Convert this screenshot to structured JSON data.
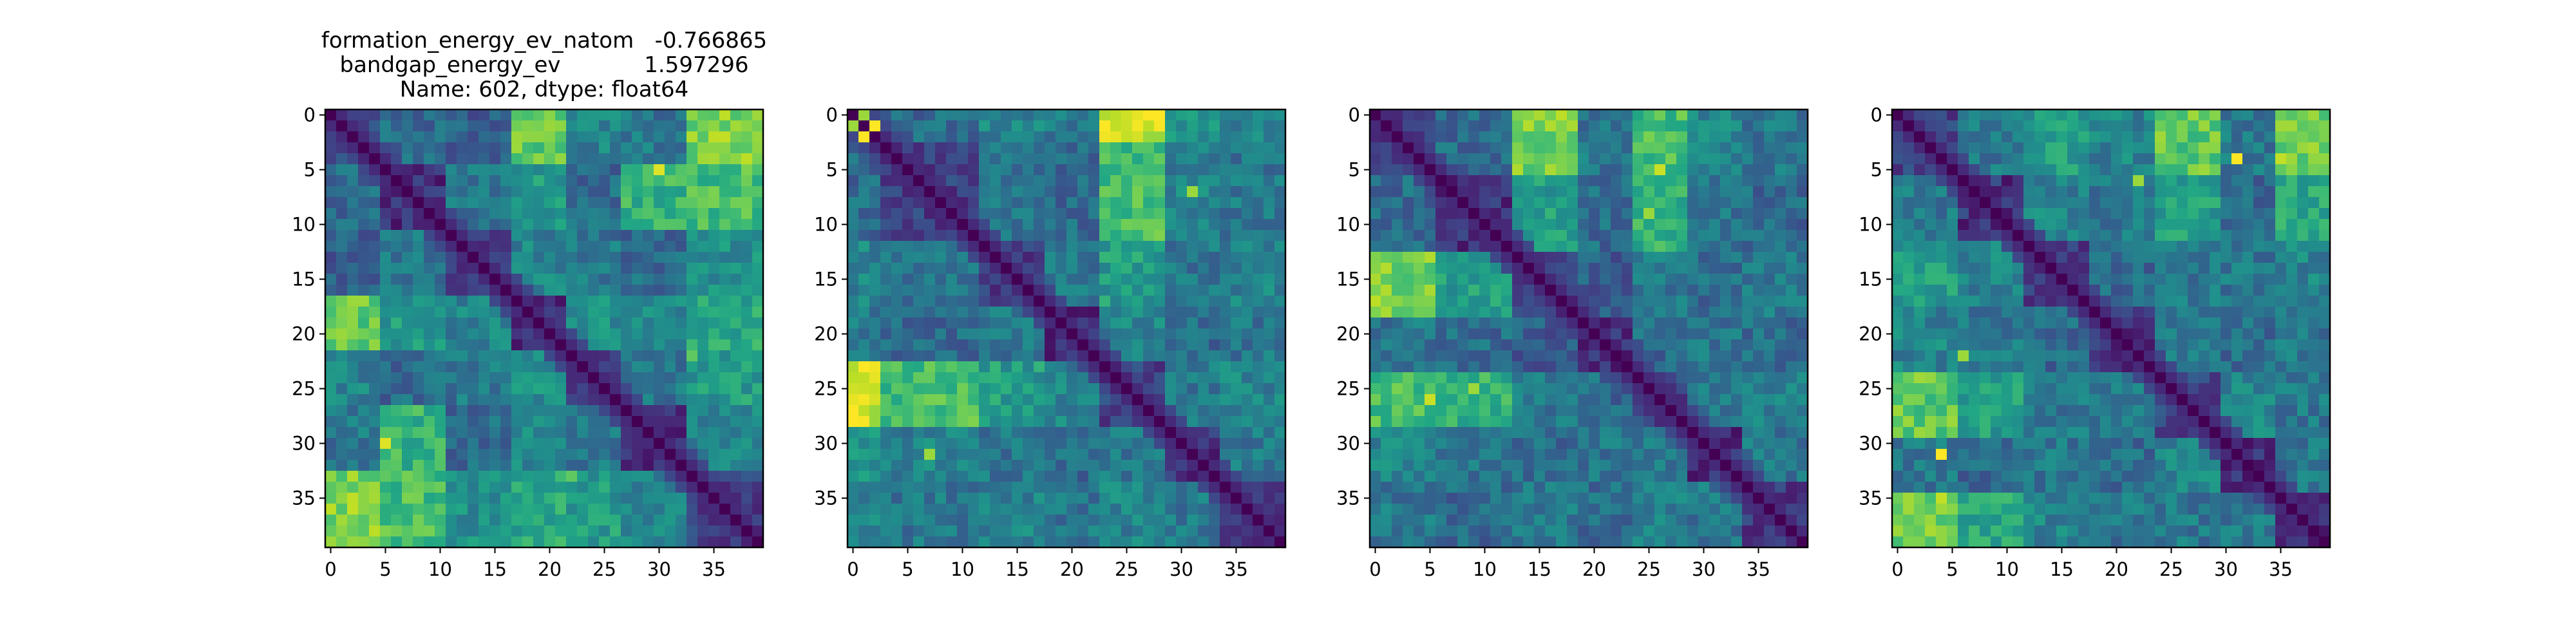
{
  "chart_data": [
    {
      "type": "heatmap",
      "title_lines": [
        "formation_energy_ev_natom   -0.766865",
        "bandgap_energy_ev            1.597296",
        "Name: 602, dtype: float64"
      ],
      "size": 40,
      "colormap": "viridis",
      "xticks": [
        0,
        5,
        10,
        15,
        20,
        25,
        30,
        35
      ],
      "yticks": [
        0,
        5,
        10,
        15,
        20,
        25,
        30,
        35
      ],
      "blocks": [
        0,
        5,
        11,
        17,
        22,
        27,
        33,
        40
      ],
      "block_levels": [
        [
          0.2,
          0.35,
          0.3,
          0.75,
          0.45,
          0.4,
          0.8,
          0.35
        ],
        [
          0.35,
          0.15,
          0.4,
          0.55,
          0.35,
          0.65,
          0.7,
          0.4
        ],
        [
          0.3,
          0.4,
          0.2,
          0.45,
          0.4,
          0.35,
          0.5,
          0.35
        ],
        [
          0.75,
          0.55,
          0.45,
          0.15,
          0.5,
          0.45,
          0.6,
          0.7
        ],
        [
          0.45,
          0.35,
          0.4,
          0.5,
          0.2,
          0.4,
          0.55,
          0.45
        ],
        [
          0.4,
          0.65,
          0.35,
          0.45,
          0.4,
          0.15,
          0.45,
          0.6
        ],
        [
          0.8,
          0.7,
          0.5,
          0.6,
          0.55,
          0.45,
          0.2,
          0.45
        ],
        [
          0.35,
          0.4,
          0.35,
          0.7,
          0.45,
          0.6,
          0.45,
          0.15
        ]
      ],
      "hot_spots": [
        [
          5,
          30,
          0.95
        ],
        [
          30,
          5,
          0.95
        ],
        [
          22,
          33,
          0.75
        ],
        [
          33,
          22,
          0.75
        ]
      ]
    },
    {
      "type": "heatmap",
      "size": 40,
      "colormap": "viridis",
      "xticks": [
        0,
        5,
        10,
        15,
        20,
        25,
        30,
        35
      ],
      "yticks": [
        0,
        5,
        10,
        15,
        20,
        25,
        30,
        35
      ],
      "blocks": [
        0,
        3,
        12,
        18,
        23,
        29,
        34,
        40
      ],
      "block_levels": [
        [
          0.4,
          0.35,
          0.45,
          0.4,
          0.9,
          0.5,
          0.45,
          0.5
        ],
        [
          0.35,
          0.2,
          0.4,
          0.35,
          0.7,
          0.45,
          0.4,
          0.35
        ],
        [
          0.45,
          0.4,
          0.2,
          0.4,
          0.55,
          0.4,
          0.45,
          0.4
        ],
        [
          0.4,
          0.35,
          0.4,
          0.15,
          0.45,
          0.35,
          0.4,
          0.35
        ],
        [
          0.9,
          0.7,
          0.55,
          0.45,
          0.2,
          0.4,
          0.45,
          0.4
        ],
        [
          0.5,
          0.45,
          0.4,
          0.35,
          0.4,
          0.15,
          0.4,
          0.45
        ],
        [
          0.45,
          0.4,
          0.45,
          0.4,
          0.45,
          0.4,
          0.15,
          0.4
        ],
        [
          0.5,
          0.35,
          0.4,
          0.35,
          0.4,
          0.45,
          0.4,
          0.15
        ]
      ],
      "hot_spots": [
        [
          1,
          2,
          1.0
        ],
        [
          2,
          1,
          1.0
        ],
        [
          0,
          1,
          0.85
        ],
        [
          1,
          0,
          0.85
        ],
        [
          7,
          31,
          0.85
        ],
        [
          31,
          7,
          0.85
        ]
      ]
    },
    {
      "type": "heatmap",
      "size": 40,
      "colormap": "viridis",
      "xticks": [
        0,
        5,
        10,
        15,
        20,
        25,
        30,
        35
      ],
      "yticks": [
        0,
        5,
        10,
        15,
        20,
        25,
        30,
        35
      ],
      "blocks": [
        0,
        6,
        13,
        19,
        24,
        29,
        34,
        40
      ],
      "block_levels": [
        [
          0.2,
          0.35,
          0.8,
          0.4,
          0.7,
          0.45,
          0.4,
          0.4
        ],
        [
          0.35,
          0.15,
          0.55,
          0.35,
          0.65,
          0.4,
          0.35,
          0.45
        ],
        [
          0.8,
          0.55,
          0.2,
          0.3,
          0.4,
          0.35,
          0.4,
          0.35
        ],
        [
          0.4,
          0.35,
          0.3,
          0.15,
          0.35,
          0.4,
          0.35,
          0.4
        ],
        [
          0.7,
          0.65,
          0.4,
          0.35,
          0.2,
          0.4,
          0.45,
          0.35
        ],
        [
          0.45,
          0.4,
          0.35,
          0.4,
          0.4,
          0.15,
          0.4,
          0.45
        ],
        [
          0.4,
          0.35,
          0.4,
          0.35,
          0.45,
          0.4,
          0.15,
          0.4
        ],
        [
          0.4,
          0.45,
          0.35,
          0.4,
          0.35,
          0.45,
          0.4,
          0.15
        ]
      ],
      "hot_spots": [
        [
          5,
          26,
          0.92
        ],
        [
          26,
          5,
          0.92
        ],
        [
          9,
          25,
          0.85
        ],
        [
          25,
          9,
          0.85
        ]
      ]
    },
    {
      "type": "heatmap",
      "size": 40,
      "colormap": "viridis",
      "xticks": [
        0,
        5,
        10,
        15,
        20,
        25,
        30,
        35
      ],
      "yticks": [
        0,
        5,
        10,
        15,
        20,
        25,
        30,
        35
      ],
      "blocks": [
        0,
        6,
        12,
        18,
        24,
        30,
        35,
        40
      ],
      "block_levels": [
        [
          0.2,
          0.4,
          0.55,
          0.45,
          0.75,
          0.4,
          0.8,
          0.45
        ],
        [
          0.4,
          0.15,
          0.45,
          0.4,
          0.55,
          0.35,
          0.6,
          0.4
        ],
        [
          0.55,
          0.45,
          0.2,
          0.35,
          0.4,
          0.4,
          0.45,
          0.35
        ],
        [
          0.45,
          0.4,
          0.35,
          0.15,
          0.4,
          0.35,
          0.4,
          0.4
        ],
        [
          0.75,
          0.55,
          0.4,
          0.4,
          0.2,
          0.45,
          0.4,
          0.35
        ],
        [
          0.4,
          0.35,
          0.4,
          0.35,
          0.45,
          0.15,
          0.4,
          0.45
        ],
        [
          0.8,
          0.6,
          0.45,
          0.4,
          0.4,
          0.4,
          0.15,
          0.4
        ],
        [
          0.45,
          0.4,
          0.35,
          0.4,
          0.35,
          0.45,
          0.4,
          0.15
        ]
      ],
      "hot_spots": [
        [
          4,
          31,
          1.0
        ],
        [
          31,
          4,
          1.0
        ],
        [
          6,
          22,
          0.85
        ],
        [
          22,
          6,
          0.85
        ]
      ]
    }
  ]
}
